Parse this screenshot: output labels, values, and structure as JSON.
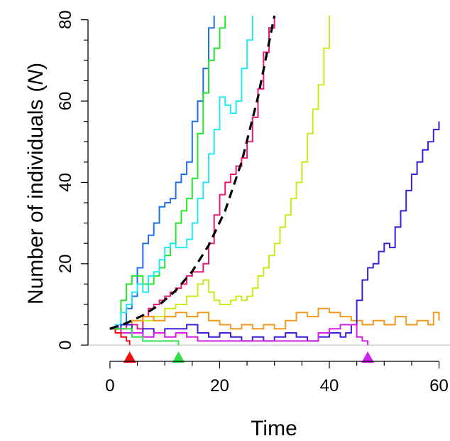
{
  "chart_data": {
    "type": "line",
    "title": "",
    "xlabel": "Time",
    "ylabel": "Number of individuals",
    "ylabel_symbol": "N",
    "xlim": [
      -4,
      62
    ],
    "ylim": [
      -4,
      81
    ],
    "xticks": [
      0,
      20,
      40,
      60
    ],
    "yticks": [
      0,
      20,
      40,
      60,
      80
    ],
    "grid": false,
    "legend": "none",
    "reference_line": {
      "y": 0,
      "color": "#bbbbbb"
    },
    "series": [
      {
        "color": "#1f6fe6",
        "style": "solid",
        "x": [
          0,
          1.5,
          3,
          4,
          5,
          6,
          7,
          8,
          9,
          10,
          11,
          12,
          13,
          14,
          15,
          16,
          17,
          18,
          19
        ],
        "y": [
          4,
          5,
          9,
          12,
          19,
          25,
          27,
          30,
          34,
          35,
          36,
          40,
          42,
          45,
          55,
          60,
          68,
          78,
          81
        ]
      },
      {
        "color": "#22e62c",
        "style": "solid",
        "x": [
          0,
          1,
          2,
          3,
          4,
          5,
          6,
          7,
          8,
          9,
          10,
          11,
          12,
          13,
          14,
          15,
          16,
          17,
          18,
          19,
          20,
          21
        ],
        "y": [
          4,
          5,
          11,
          15,
          17,
          17,
          15,
          15,
          17,
          19,
          22,
          25,
          30,
          33,
          36,
          41,
          52,
          62,
          70,
          73,
          78,
          81
        ]
      },
      {
        "color": "#22eaf5",
        "style": "solid",
        "x": [
          0,
          1,
          2,
          3,
          4,
          5,
          6,
          7,
          8,
          9,
          10,
          11,
          12,
          13,
          14,
          15,
          16,
          17,
          18,
          19,
          20,
          21,
          22,
          23,
          24,
          25,
          26
        ],
        "y": [
          4,
          5,
          8,
          10,
          13,
          15,
          13,
          17,
          18,
          21,
          24,
          25,
          24,
          24,
          26,
          30,
          36,
          40,
          47,
          53,
          61,
          59,
          57,
          60,
          68,
          75,
          81
        ]
      },
      {
        "color": "#e8197a",
        "style": "solid",
        "x": [
          0,
          1,
          2,
          3,
          4,
          5,
          6,
          7,
          8,
          9,
          10,
          11,
          12,
          13,
          14,
          15,
          16,
          17,
          18,
          19,
          20,
          21,
          22,
          23,
          24,
          25,
          26,
          27,
          28,
          29,
          30
        ],
        "y": [
          4,
          3,
          4,
          5,
          5,
          4,
          7,
          9,
          10,
          11,
          12,
          13,
          14,
          15,
          17,
          18,
          18,
          20,
          25,
          32,
          37,
          40,
          42,
          44,
          46,
          50,
          56,
          63,
          72,
          78,
          81
        ]
      },
      {
        "color": "#c6ec1a",
        "style": "solid",
        "x": [
          0,
          2,
          4,
          6,
          8,
          10,
          12,
          14,
          16,
          17,
          18,
          19,
          20,
          21,
          22,
          23,
          24,
          25,
          26,
          27,
          28,
          29,
          30,
          31,
          32,
          33,
          34,
          35,
          36,
          37,
          38,
          39,
          40
        ],
        "y": [
          4,
          5,
          6,
          6,
          7,
          9,
          10,
          12,
          15,
          16,
          13,
          11,
          10,
          10,
          11,
          12,
          11,
          12,
          14,
          17,
          19,
          22,
          25,
          29,
          32,
          36,
          40,
          45,
          52,
          58,
          64,
          73,
          81
        ]
      },
      {
        "color": "#f29a1e",
        "style": "solid",
        "x": [
          0,
          2,
          4,
          6,
          8,
          10,
          12,
          14,
          16,
          18,
          20,
          22,
          24,
          26,
          28,
          30,
          32,
          34,
          36,
          38,
          40,
          42,
          44,
          46,
          48,
          50,
          52,
          54,
          56,
          58,
          59,
          60
        ],
        "y": [
          4,
          5,
          6,
          7,
          6,
          7,
          8,
          7,
          8,
          6,
          5,
          4,
          5,
          4,
          5,
          4,
          6,
          8,
          7,
          9,
          8,
          7,
          6,
          5,
          6,
          5,
          7,
          5,
          6,
          5,
          8,
          6
        ]
      },
      {
        "color": "#3c1fd8",
        "style": "solid",
        "x": [
          0,
          2,
          4,
          6,
          8,
          10,
          12,
          14,
          16,
          18,
          20,
          22,
          24,
          26,
          28,
          30,
          32,
          34,
          36,
          38,
          40,
          42,
          43,
          44,
          45,
          46,
          47,
          48,
          49,
          50,
          51,
          52,
          53,
          54,
          55,
          56,
          57,
          58,
          59,
          60
        ],
        "y": [
          4,
          5,
          3,
          4,
          3,
          4,
          4,
          5,
          3,
          2,
          3,
          2,
          1,
          2,
          1,
          2,
          3,
          2,
          1,
          2,
          3,
          2,
          3,
          5,
          11,
          16,
          19,
          20,
          23,
          25,
          24,
          29,
          33,
          38,
          42,
          45,
          48,
          50,
          53,
          55
        ]
      },
      {
        "color": "#d41fe0",
        "style": "solid",
        "x": [
          0,
          2,
          4,
          6,
          8,
          10,
          12,
          14,
          16,
          18,
          20,
          22,
          24,
          26,
          28,
          30,
          32,
          34,
          36,
          38,
          40,
          42,
          44,
          45,
          46,
          47
        ],
        "y": [
          4,
          3,
          3,
          2,
          3,
          2,
          3,
          2,
          1,
          1,
          1,
          1,
          1,
          1,
          1,
          1,
          1,
          1,
          1,
          3,
          4,
          5,
          5,
          2,
          1,
          0
        ]
      },
      {
        "color": "#ee1111",
        "style": "solid",
        "x": [
          0,
          1,
          2,
          3,
          3.6
        ],
        "y": [
          4,
          3,
          2,
          1,
          0
        ]
      },
      {
        "color": "#2ee048",
        "style": "solid",
        "x": [
          0,
          2,
          4,
          6,
          8,
          10,
          12.5
        ],
        "y": [
          4,
          4,
          2,
          1,
          1,
          1,
          0
        ]
      },
      {
        "color": "#000000",
        "style": "dashed",
        "x": [
          0,
          3,
          6,
          9,
          12,
          15,
          18,
          21,
          24,
          27,
          30
        ],
        "y": [
          4,
          5.4,
          7.3,
          9.9,
          13.4,
          18.1,
          24.5,
          33,
          45,
          61,
          81
        ]
      }
    ],
    "extinction_markers": [
      {
        "x": 3.6,
        "color": "#ee1111"
      },
      {
        "x": 12.5,
        "color": "#2ee048"
      },
      {
        "x": 47,
        "color": "#cc22ee"
      }
    ]
  }
}
